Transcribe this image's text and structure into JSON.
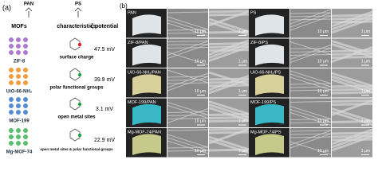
{
  "panel_a": {
    "label": "(a)",
    "polymers": [
      "PAN",
      "PS"
    ],
    "headers": [
      "MOFs",
      "characteristics",
      "ζ potential"
    ],
    "rows": [
      {
        "mof": "ZIF-8",
        "characteristic": "surface charge",
        "zeta": "47.5 mV"
      },
      {
        "mof": "UiO-66-NH₂",
        "characteristic": "polar functional groups",
        "zeta": "39.9 mV"
      },
      {
        "mof": "MOF-199",
        "characteristic": "open metal sites",
        "zeta": "3.1 mV"
      },
      {
        "mof": "Mg-MOF-74",
        "characteristic": "open metal sites & polar functional groups",
        "zeta": "22.9 mV"
      }
    ]
  },
  "panel_b": {
    "label": "(b)",
    "scale_bars": [
      "10 μm",
      "1 μm"
    ],
    "rows": [
      [
        "PAN",
        "PS"
      ],
      [
        "ZIF-8/PAN",
        "ZIF-8/PS"
      ],
      [
        "UiO-66-NH₂/PAN",
        "UiO-66-NH₂/PS"
      ],
      [
        "MOF-199/PAN",
        "MOF-199/PS"
      ],
      [
        "Mg-MOF-74/PAN",
        "Mg-MOF-74/PS"
      ]
    ]
  }
}
